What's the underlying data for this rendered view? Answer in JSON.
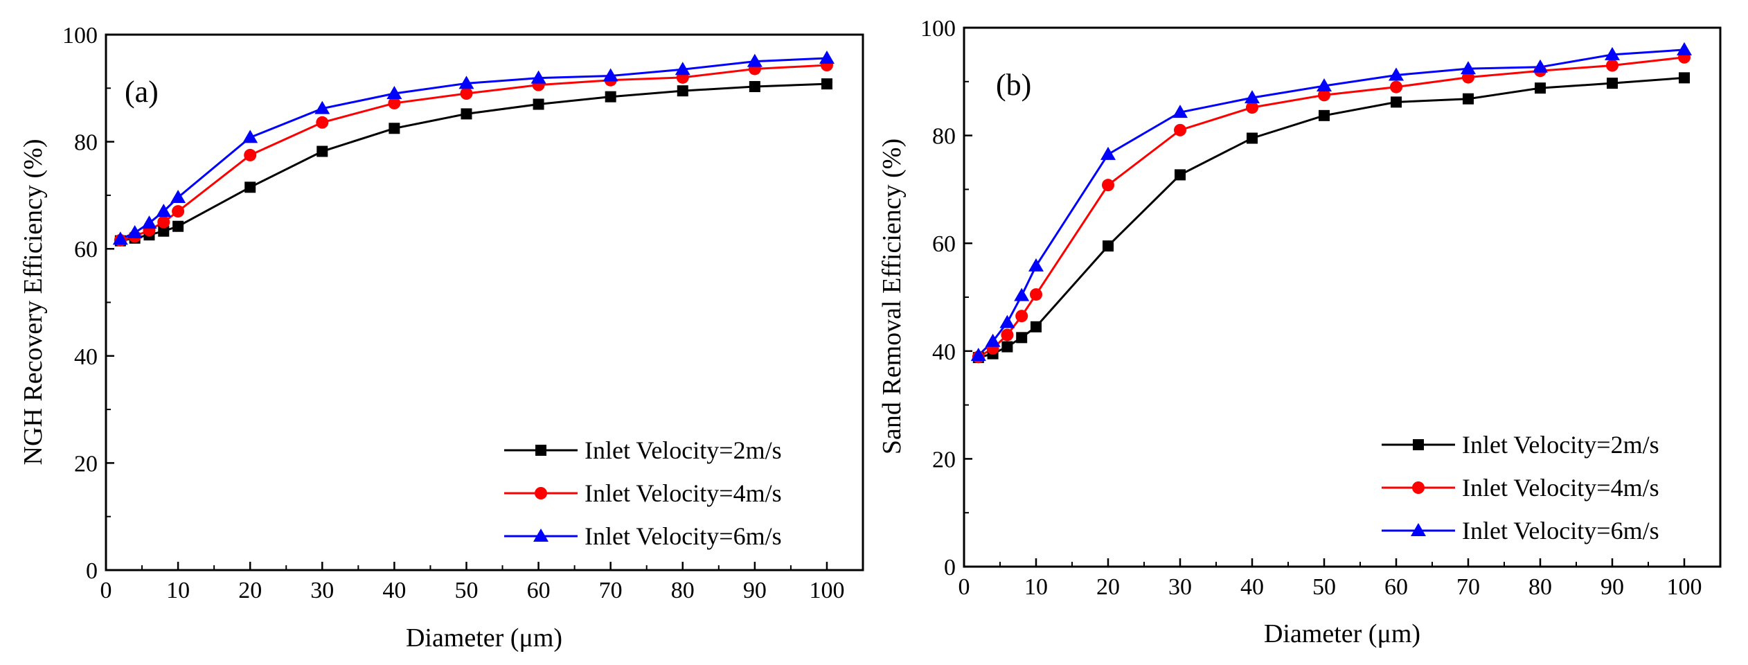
{
  "chart_data": [
    {
      "type": "line",
      "panel_label": "(a)",
      "title": "",
      "xlabel": "Diameter (μm)",
      "ylabel": "NGH Recovery Efficiency (%)",
      "xlim": [
        0,
        105
      ],
      "ylim": [
        0,
        100
      ],
      "xticks": [
        0,
        10,
        20,
        30,
        40,
        50,
        60,
        70,
        80,
        90,
        100
      ],
      "yticks": [
        0,
        20,
        40,
        60,
        80,
        100
      ],
      "x": [
        2,
        4,
        6,
        8,
        10,
        20,
        30,
        40,
        50,
        60,
        70,
        80,
        90,
        100
      ],
      "legend_position": "bottom-right",
      "series": [
        {
          "name": "Inlet Velocity=2m/s",
          "color": "#000000",
          "marker": "square",
          "values": [
            61.5,
            62.0,
            62.6,
            63.3,
            64.2,
            71.5,
            78.2,
            82.5,
            85.2,
            87.0,
            88.4,
            89.5,
            90.3,
            90.8
          ]
        },
        {
          "name": "Inlet Velocity=4m/s",
          "color": "#ff0000",
          "marker": "circle",
          "values": [
            61.6,
            62.3,
            63.5,
            65.0,
            67.0,
            77.5,
            83.6,
            87.2,
            89.0,
            90.6,
            91.5,
            92.0,
            93.6,
            94.3
          ]
        },
        {
          "name": "Inlet Velocity=6m/s",
          "color": "#0000ff",
          "marker": "triangle",
          "values": [
            61.8,
            63.0,
            64.8,
            67.0,
            69.6,
            80.8,
            86.2,
            89.0,
            90.9,
            91.9,
            92.3,
            93.5,
            95.0,
            95.6
          ]
        }
      ]
    },
    {
      "type": "line",
      "panel_label": "(b)",
      "title": "",
      "xlabel": "Diameter (μm)",
      "ylabel": "Sand Removal Efficiency (%)",
      "xlim": [
        0,
        105
      ],
      "ylim": [
        0,
        100
      ],
      "xticks": [
        0,
        10,
        20,
        30,
        40,
        50,
        60,
        70,
        80,
        90,
        100
      ],
      "yticks": [
        0,
        20,
        40,
        60,
        80,
        100
      ],
      "x": [
        2,
        4,
        6,
        8,
        10,
        20,
        30,
        40,
        50,
        60,
        70,
        80,
        90,
        100
      ],
      "legend_position": "bottom-right",
      "series": [
        {
          "name": "Inlet Velocity=2m/s",
          "color": "#000000",
          "marker": "square",
          "values": [
            38.8,
            39.5,
            40.8,
            42.5,
            44.5,
            59.5,
            72.7,
            79.5,
            83.7,
            86.2,
            86.8,
            88.8,
            89.7,
            90.7
          ]
        },
        {
          "name": "Inlet Velocity=4m/s",
          "color": "#ff0000",
          "marker": "circle",
          "values": [
            38.9,
            40.5,
            43.0,
            46.5,
            50.5,
            70.8,
            81.0,
            85.2,
            87.5,
            89.0,
            90.8,
            92.0,
            93.0,
            94.5
          ]
        },
        {
          "name": "Inlet Velocity=6m/s",
          "color": "#0000ff",
          "marker": "triangle",
          "values": [
            39.2,
            41.8,
            45.3,
            50.3,
            55.8,
            76.5,
            84.3,
            87.0,
            89.2,
            91.2,
            92.4,
            92.7,
            95.0,
            95.9
          ]
        }
      ]
    }
  ]
}
